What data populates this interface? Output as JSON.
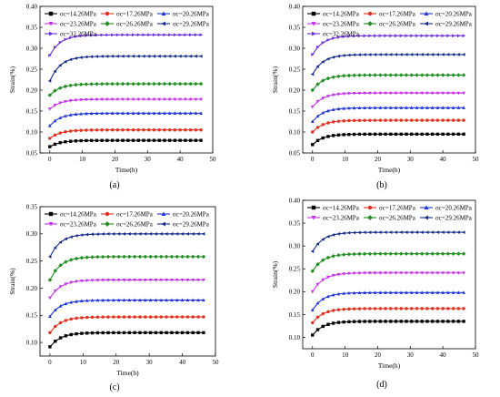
{
  "colors": {
    "black": "#000000",
    "red": "#e0301e",
    "blue": "#1f35d6",
    "magenta": "#c431e8",
    "green": "#1f8f1f",
    "navy": "#142b8a",
    "purple": "#6a2fd8"
  },
  "chart_data": [
    {
      "type": "line",
      "panel_label": "(a)",
      "xlabel": "Time(h)",
      "ylabel": "Strain(%)",
      "xlim": [
        -3,
        50
      ],
      "ylim": [
        0.05,
        0.4
      ],
      "xticks": [
        "0",
        "10",
        "20",
        "30",
        "40",
        "50"
      ],
      "yticks": [
        "0.05",
        "0.10",
        "0.15",
        "0.20",
        "0.25",
        "0.30",
        "0.35",
        "0.40"
      ],
      "legend_columns": 3,
      "series": [
        {
          "name": "σc=14.26MPa",
          "marker": "square",
          "color": "#000000",
          "y0": 0.065,
          "yinf": 0.08
        },
        {
          "name": "σc=17.26MPa",
          "marker": "circle",
          "color": "#e0301e",
          "y0": 0.085,
          "yinf": 0.105
        },
        {
          "name": "σc=20.26MPa",
          "marker": "triangle-up",
          "color": "#1f35d6",
          "y0": 0.115,
          "yinf": 0.145
        },
        {
          "name": "σc=23.26MPa",
          "marker": "triangle-down",
          "color": "#c431e8",
          "y0": 0.155,
          "yinf": 0.178
        },
        {
          "name": "σc=26.26MPa",
          "marker": "diamond",
          "color": "#1f8f1f",
          "y0": 0.188,
          "yinf": 0.215
        },
        {
          "name": "σc=29.26MPa",
          "marker": "triangle-left",
          "color": "#142b8a",
          "y0": 0.222,
          "yinf": 0.281
        },
        {
          "name": "σc=32.26MPa",
          "marker": "triangle-right",
          "color": "#6a2fd8",
          "y0": 0.283,
          "yinf": 0.332
        }
      ]
    },
    {
      "type": "line",
      "panel_label": "(b)",
      "xlabel": "Time(h)",
      "ylabel": "Strain(%)",
      "xlim": [
        -3,
        50
      ],
      "ylim": [
        0.05,
        0.4
      ],
      "xticks": [
        "0",
        "10",
        "20",
        "30",
        "40",
        "50"
      ],
      "yticks": [
        "0.05",
        "0.10",
        "0.15",
        "0.20",
        "0.25",
        "0.30",
        "0.35",
        "0.40"
      ],
      "legend_columns": 3,
      "series": [
        {
          "name": "σc=14.26MPa",
          "marker": "square",
          "color": "#000000",
          "y0": 0.07,
          "yinf": 0.095
        },
        {
          "name": "σc=17.26MPa",
          "marker": "circle",
          "color": "#e0301e",
          "y0": 0.1,
          "yinf": 0.128
        },
        {
          "name": "σc=20.26MPa",
          "marker": "triangle-up",
          "color": "#1f35d6",
          "y0": 0.125,
          "yinf": 0.158
        },
        {
          "name": "σc=23.26MPa",
          "marker": "triangle-down",
          "color": "#c431e8",
          "y0": 0.16,
          "yinf": 0.193
        },
        {
          "name": "σc=26.26MPa",
          "marker": "diamond",
          "color": "#1f8f1f",
          "y0": 0.2,
          "yinf": 0.236
        },
        {
          "name": "σc=29.26MPa",
          "marker": "triangle-left",
          "color": "#142b8a",
          "y0": 0.238,
          "yinf": 0.285
        },
        {
          "name": "σc=32.26MPa",
          "marker": "triangle-right",
          "color": "#6a2fd8",
          "y0": 0.285,
          "yinf": 0.33
        }
      ]
    },
    {
      "type": "line",
      "panel_label": "(c)",
      "xlabel": "Time(h)",
      "ylabel": "Strain(%)",
      "xlim": [
        -3,
        50
      ],
      "ylim": [
        0.075,
        0.35
      ],
      "xticks": [
        "0",
        "10",
        "20",
        "30",
        "40",
        "50"
      ],
      "yticks": [
        "0.10",
        "0.15",
        "0.20",
        "0.25",
        "0.30",
        "0.35"
      ],
      "legend_columns": 3,
      "series": [
        {
          "name": "σc=14.26MPa",
          "marker": "square",
          "color": "#000000",
          "y0": 0.092,
          "yinf": 0.118
        },
        {
          "name": "σc=17.26MPa",
          "marker": "circle",
          "color": "#e0301e",
          "y0": 0.118,
          "yinf": 0.147
        },
        {
          "name": "σc=20.26MPa",
          "marker": "triangle-up",
          "color": "#1f35d6",
          "y0": 0.148,
          "yinf": 0.178
        },
        {
          "name": "σc=23.26MPa",
          "marker": "triangle-down",
          "color": "#c431e8",
          "y0": 0.182,
          "yinf": 0.215
        },
        {
          "name": "σc=26.26MPa",
          "marker": "diamond",
          "color": "#1f8f1f",
          "y0": 0.215,
          "yinf": 0.258
        },
        {
          "name": "σc=29.26MPa",
          "marker": "triangle-left",
          "color": "#142b8a",
          "y0": 0.258,
          "yinf": 0.3
        }
      ]
    },
    {
      "type": "line",
      "panel_label": "(d)",
      "xlabel": "Time(h)",
      "ylabel": "Strain(%)",
      "xlim": [
        -3,
        50
      ],
      "ylim": [
        0.075,
        0.4
      ],
      "xticks": [
        "0",
        "10",
        "20",
        "30",
        "40",
        "50"
      ],
      "yticks": [
        "0.10",
        "0.15",
        "0.20",
        "0.25",
        "0.30",
        "0.35",
        "0.40"
      ],
      "legend_columns": 3,
      "series": [
        {
          "name": "σc=14.26MPa",
          "marker": "square",
          "color": "#000000",
          "y0": 0.105,
          "yinf": 0.135
        },
        {
          "name": "σc=17.26MPa",
          "marker": "circle",
          "color": "#e0301e",
          "y0": 0.132,
          "yinf": 0.163
        },
        {
          "name": "σc=20.26MPa",
          "marker": "triangle-up",
          "color": "#1f35d6",
          "y0": 0.16,
          "yinf": 0.198
        },
        {
          "name": "σc=23.26MPa",
          "marker": "triangle-down",
          "color": "#c431e8",
          "y0": 0.2,
          "yinf": 0.241
        },
        {
          "name": "σc=26.26MPa",
          "marker": "diamond",
          "color": "#1f8f1f",
          "y0": 0.245,
          "yinf": 0.283
        },
        {
          "name": "σc=29.26MPa",
          "marker": "triangle-left",
          "color": "#142b8a",
          "y0": 0.288,
          "yinf": 0.33
        }
      ]
    }
  ]
}
